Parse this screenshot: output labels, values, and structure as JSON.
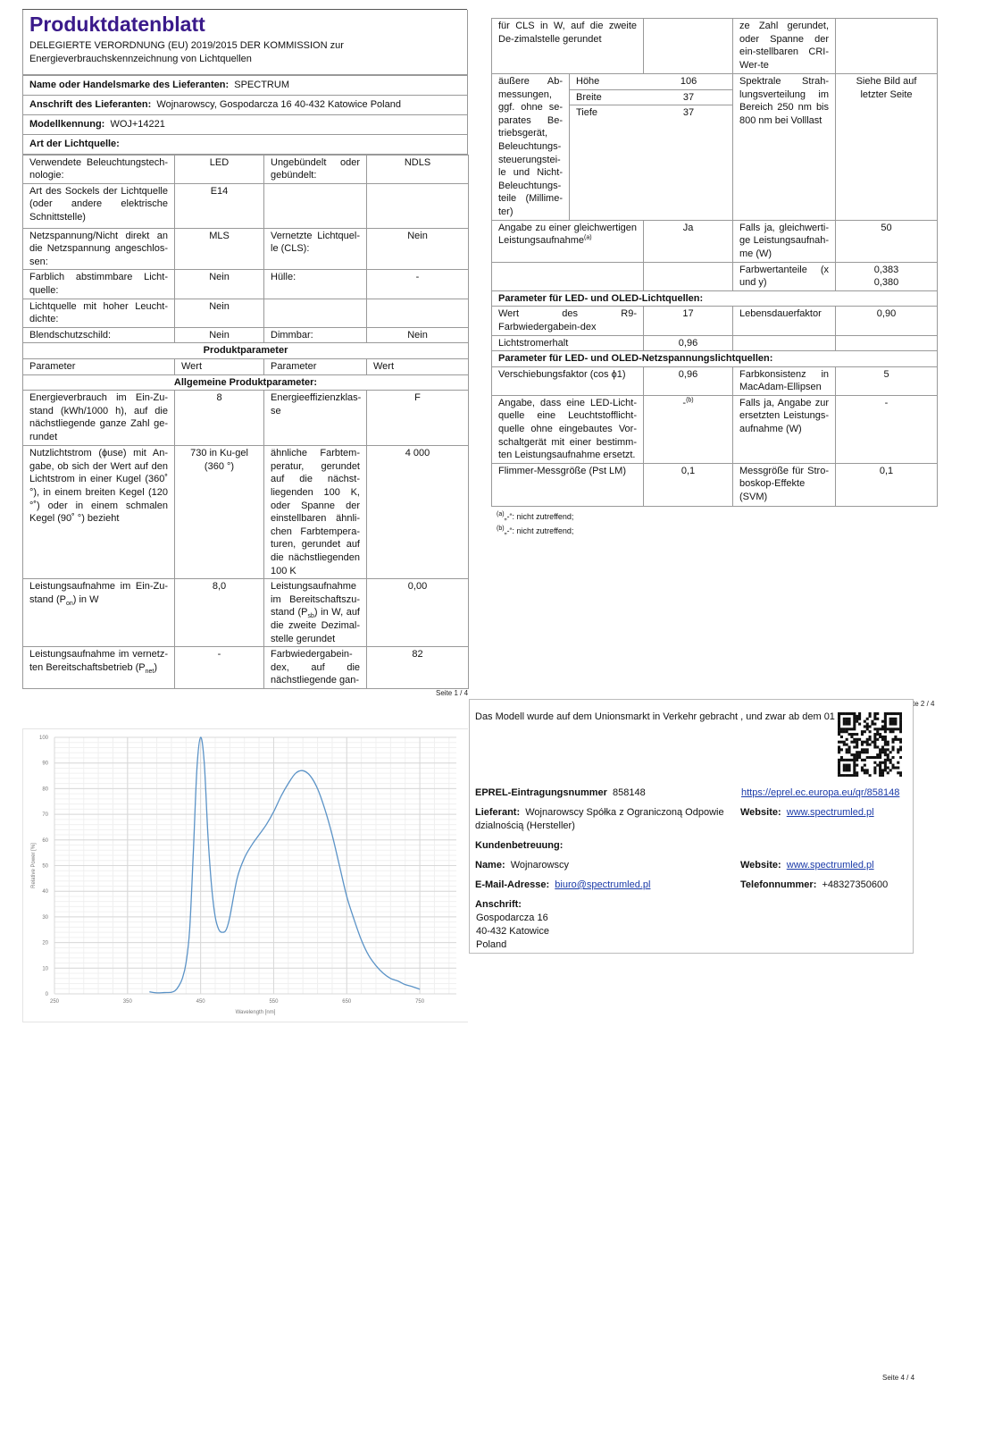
{
  "page1": {
    "title": "Produktdatenblatt",
    "subtitle_line1": "DELEGIERTE VERORDNUNG (EU) 2019/2015 DER KOMMISSION zur",
    "subtitle_line2": "Energieverbrauchskennzeichnung von Lichtquellen",
    "info_rows": [
      {
        "label": "Name oder Handelsmarke des Lieferanten:",
        "value": "SPECTRUM"
      },
      {
        "label": "Anschrift des Lieferanten:",
        "value": "Wojnarowscy, Gospodarcza 16 40-432 Katowice Poland"
      },
      {
        "label": "Modellkennung:",
        "value": "WOJ+14221"
      },
      {
        "label": "Art der Lichtquelle:",
        "value": ""
      }
    ],
    "rows": [
      {
        "h": 32,
        "cells": [
          "Verwendete Beleuchtungstech-nologie:",
          "LED",
          "Ungebündelt oder gebündelt:",
          "NDLS"
        ]
      },
      {
        "h": 50,
        "cells": [
          "Art des Sockels der Lichtquelle (oder andere elektrische Schnittstelle)",
          "E14",
          "",
          ""
        ]
      },
      {
        "h": 46,
        "cells": [
          "Netzspannung/Nicht direkt an die Netzspannung angeschlos-sen:",
          "MLS",
          "Vernetzte Lichtquel-le (CLS):",
          "Nein"
        ]
      },
      {
        "h": 32,
        "cells": [
          "Farblich abstimmbare Licht-quelle:",
          "Nein",
          "Hülle:",
          "-"
        ]
      },
      {
        "h": 32,
        "cells": [
          "Lichtquelle mit hoher Leucht-dichte:",
          "Nein",
          "",
          ""
        ]
      },
      {
        "h": 17,
        "cells": [
          "Blendschutzschild:",
          "Nein",
          "Dimmbar:",
          "Nein"
        ]
      },
      {
        "h": 17,
        "full": "Produktparameter",
        "bold": true,
        "center": true
      },
      {
        "h": 17,
        "cells": [
          "Parameter",
          "Wert",
          "Parameter",
          "Wert"
        ],
        "header": true
      },
      {
        "h": 17,
        "full": "Allgemeine Produktparameter:",
        "bold": true,
        "center": true
      },
      {
        "h": 62,
        "cells": [
          "Energieverbrauch im Ein-Zu-stand (kWh/1000 h), auf die nächstliegende ganze Zahl ge-rundet",
          "8",
          "Energieeffizienzklas-se",
          "F"
        ]
      },
      {
        "h": 148,
        "cells": [
          "Nutzlichtstrom (ϕuse) mit An-gabe, ob sich der Wert auf den Lichtstrom in einer Kugel (360˚ °), in einem breiten Kegel (120 °˚) oder in einem schmalen Kegel (90˚ °) bezieht",
          "730 in Ku-gel (360 °)",
          "ähnliche Farbtem-peratur, gerundet auf die nächst-liegenden 100 K, oder Spanne der einstellbaren ähnli-chen Farbtempera-turen, gerundet auf die nächstliegenden 100 K",
          "4 000"
        ]
      },
      {
        "h": 76,
        "cells": [
          [
            "Leistungsaufnahme im Ein-Zu-stand (P",
            {
              "sub": "on"
            },
            ") in W"
          ],
          "8,0",
          [
            "Leistungsaufnahme im Bereitschaftszu-stand (P",
            {
              "sub": "sb"
            },
            ") in W, auf die zweite Dezimal-stelle gerundet"
          ],
          "0,00"
        ]
      },
      {
        "h": 47,
        "cells": [
          [
            "Leistungsaufnahme im vernetz-ten Bereitschaftsbetrieb (P",
            {
              "sub": "net"
            },
            ")"
          ],
          "-",
          "Farbwiedergabein-dex, auf die nächstliegende gan-",
          "82"
        ]
      }
    ],
    "page_number": "Seite 1 / 4"
  },
  "page2": {
    "rows": [
      {
        "h": 62,
        "cells": [
          "für CLS in W, auf die zweite De-zimalstelle gerundet",
          "",
          "ze Zahl gerundet, oder Spanne der ein-stellbaren CRI-Wer-te",
          ""
        ]
      },
      {
        "h": 163,
        "dims": true,
        "label": "äußere Ab-messungen, ggf. ohne se-parates Be-triebsgerät, Beleuchtungs-steuerungstei-le und Nicht-Beleuchtungs-teile (Millime-ter)",
        "dimensions": [
          {
            "name": "Höhe",
            "value": "106"
          },
          {
            "name": "Breite",
            "value": "37"
          },
          {
            "name": "Tiefe",
            "value": "37"
          }
        ],
        "c3": "Spektrale Strah-lungsverteilung im Bereich 250 nm bis 800 nm bei Volllast",
        "c4": "Siehe Bild auf letzter Seite"
      },
      {
        "h": 47,
        "cells": [
          [
            "Angabe zu einer gleichwertigen Leistungsaufnahme",
            {
              "sup": "(a)"
            }
          ],
          "Ja",
          "Falls ja, gleichwerti-ge Leistungsaufnah-me (W)",
          "50"
        ]
      },
      {
        "h": 31,
        "cells": [
          "",
          "",
          "Farbwertanteile (x und y)",
          "0,383\n0,380"
        ]
      },
      {
        "h": 17,
        "full": "Parameter für LED- und OLED-Lichtquellen:",
        "bold": true
      },
      {
        "h": 32,
        "cells": [
          "Wert des R9-Farbwiedergabein-dex",
          "17",
          "Lebensdauerfaktor",
          "0,90"
        ]
      },
      {
        "h": 17,
        "cells": [
          "Lichtstromerhalt",
          "0,96",
          "",
          ""
        ]
      },
      {
        "h": 17,
        "full": "Parameter für LED- und OLED-Netzspannungslichtquellen:",
        "bold": true
      },
      {
        "h": 32,
        "cells": [
          "Verschiebungsfaktor (cos ϕ1)",
          "0,96",
          "Farbkonsistenz in MacAdam-Ellipsen",
          "5"
        ]
      },
      {
        "h": 76,
        "cells": [
          "Angabe, dass eine LED-Licht-quelle eine Leuchtstofflicht-quelle ohne eingebautes Vor-schaltgerät mit einer bestimm-ten Leistungsaufnahme ersetzt.",
          [
            "-",
            {
              "sup": "(b)"
            }
          ],
          "Falls ja, Angabe zur ersetzten Leistungs-aufnahme (W)",
          "-"
        ]
      },
      {
        "h": 48,
        "cells": [
          "Flimmer-Messgröße (Pst LM)",
          "0,1",
          "Messgröße für Stro-boskop-Effekte (SVM)",
          "0,1"
        ]
      }
    ],
    "footnote_a_mark": "(a)",
    "footnote_a": "„-“: nicht zutreffend;",
    "footnote_b_mark": "(b)",
    "footnote_b": "„-“: nicht zutreffend;",
    "page_number": "te 2 / 4"
  },
  "info": {
    "market_text": "Das Modell wurde auf dem Unionsmarkt in Verkehr gebracht , und zwar ab dem 01",
    "eprel_label": "EPREL-Eintragungsnummer",
    "eprel_value": "858148",
    "eprel_link": "https://eprel.ec.europa.eu/qr/858148",
    "supplier_label": "Lieferant:",
    "supplier_value": "Wojnarowscy Spółka z Ograniczoną Odpowie dzialnością (Hersteller)",
    "website_label": "Website:",
    "website_value": "www.spectrumled.pl",
    "customer_service_label": "Kundenbetreuung:",
    "name_label": "Name:",
    "name_value": "Wojnarowscy",
    "website2_label": "Website:",
    "website2_value": "www.spectrumled.pl",
    "email_label": "E-Mail-Adresse:",
    "email_value": "biuro@spectrumled.pl",
    "phone_label": "Telefonnummer:",
    "phone_value": "+48327350600",
    "address_label": "Anschrift:",
    "address_lines": [
      "Gospodarcza 16",
      "40-432 Katowice",
      "Poland"
    ],
    "qr_icon": "qr-code"
  },
  "page4_number": "Seite 4 / 4",
  "colors": {
    "title": "#3a1a8a",
    "link": "#1a3aa8",
    "curve": "#5b93c7"
  },
  "chart_data": {
    "type": "line",
    "xlabel": "Wavelength [nm]",
    "ylabel": "Relative Power [%]",
    "xlim": [
      250,
      800
    ],
    "ylim": [
      0,
      100
    ],
    "xticks": [
      250,
      350,
      450,
      550,
      650,
      750
    ],
    "yticks": [
      0,
      10,
      20,
      30,
      40,
      50,
      60,
      70,
      80,
      90,
      100
    ],
    "grid": true,
    "x": [
      380,
      390,
      400,
      410,
      415,
      420,
      425,
      430,
      435,
      440,
      445,
      450,
      455,
      460,
      465,
      470,
      475,
      480,
      485,
      490,
      500,
      510,
      520,
      530,
      540,
      550,
      560,
      570,
      580,
      590,
      600,
      610,
      620,
      630,
      640,
      650,
      660,
      670,
      680,
      690,
      700,
      710,
      720,
      730,
      740,
      750
    ],
    "y": [
      0.8,
      0.4,
      0.5,
      0.6,
      1.2,
      3,
      6,
      12,
      25,
      55,
      88,
      100,
      90,
      62,
      42,
      30,
      25,
      24,
      25,
      30,
      45,
      53,
      58,
      62,
      66,
      71,
      77,
      82,
      86,
      87,
      85,
      80,
      72,
      62,
      50,
      38,
      29,
      21,
      15,
      11,
      8,
      6,
      5,
      3.6,
      2.8,
      1.8
    ]
  }
}
